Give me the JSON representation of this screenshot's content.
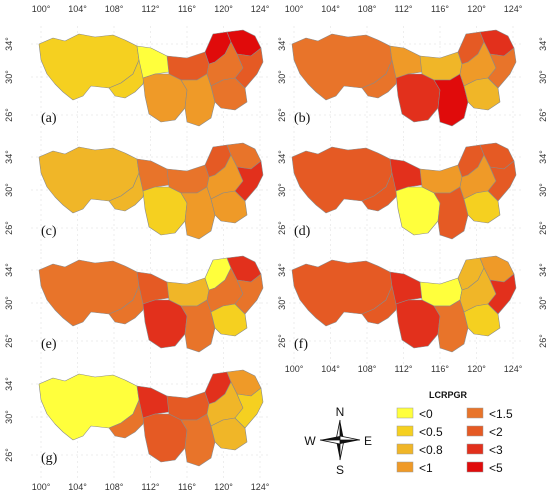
{
  "top_lon_ticks": [
    "100°",
    "104°",
    "108°",
    "112°",
    "116°",
    "120°",
    "124°"
  ],
  "bottom_lon_ticks": [
    "100°",
    "104°",
    "108°",
    "112°",
    "116°",
    "120°",
    "124°"
  ],
  "lat_ticks": [
    "34°",
    "30°",
    "26°"
  ],
  "legend": {
    "title": "LCRPGR",
    "classes": [
      {
        "label": "<0",
        "color": "#ffff3c"
      },
      {
        "label": "<0.5",
        "color": "#f5d020"
      },
      {
        "label": "<0.8",
        "color": "#f0b628"
      },
      {
        "label": "<1",
        "color": "#ef9a28"
      },
      {
        "label": "<1.5",
        "color": "#e8742a"
      },
      {
        "label": "<2",
        "color": "#e55a24"
      },
      {
        "label": "<3",
        "color": "#e2301c"
      },
      {
        "label": "<5",
        "color": "#e00b0b"
      }
    ]
  },
  "compass": {
    "n": "N",
    "s": "S",
    "e": "E",
    "w": "W"
  },
  "panels": [
    {
      "label": "(a)",
      "classes": [
        1,
        1,
        0,
        5,
        3,
        3,
        7,
        7,
        4,
        4,
        5
      ]
    },
    {
      "label": "(b)",
      "classes": [
        4,
        4,
        3,
        2,
        6,
        7,
        5,
        6,
        3,
        2,
        4
      ]
    },
    {
      "label": "(c)",
      "classes": [
        2,
        2,
        4,
        4,
        1,
        3,
        5,
        4,
        3,
        3,
        6
      ]
    },
    {
      "label": "(d)",
      "classes": [
        5,
        5,
        6,
        3,
        0,
        5,
        5,
        5,
        3,
        1,
        5
      ]
    },
    {
      "label": "(e)",
      "classes": [
        4,
        4,
        5,
        2,
        6,
        4,
        0,
        6,
        4,
        1,
        4
      ]
    },
    {
      "label": "(f)",
      "classes": [
        5,
        5,
        6,
        0,
        6,
        4,
        2,
        3,
        2,
        1,
        6
      ]
    },
    {
      "label": "(g)",
      "classes": [
        0,
        4,
        6,
        5,
        5,
        4,
        6,
        3,
        2,
        2,
        1
      ]
    }
  ]
}
